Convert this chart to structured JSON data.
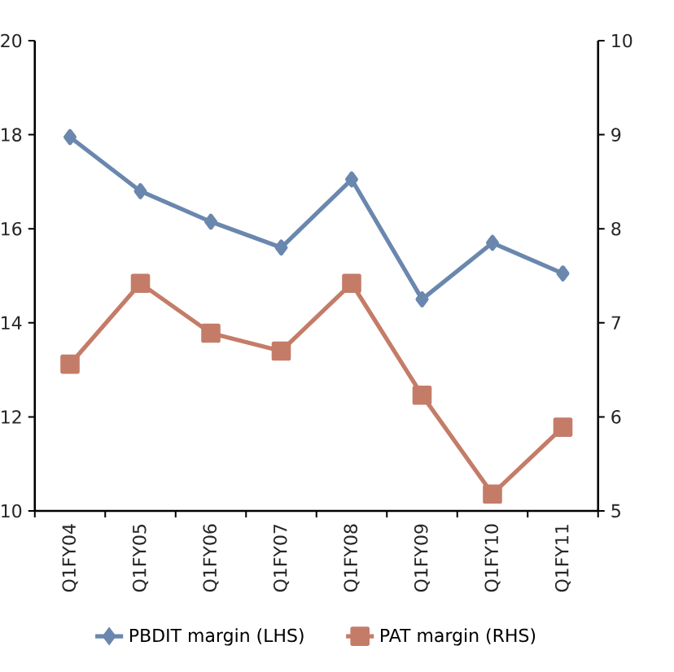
{
  "chart_data": {
    "type": "line",
    "categories": [
      "Q1FY04",
      "Q1FY05",
      "Q1FY06",
      "Q1FY07",
      "Q1FY08",
      "Q1FY09",
      "Q1FY10",
      "Q1FY11"
    ],
    "series": [
      {
        "name": "PBDIT margin (LHS)",
        "color": "#6a87ae",
        "marker": "diamond",
        "values": [
          17.95,
          16.8,
          16.15,
          15.6,
          17.05,
          14.5,
          15.7,
          15.05
        ]
      },
      {
        "name": "PAT margin (RHS)",
        "color": "#c47c68",
        "marker": "square",
        "axis": "y2",
        "values": [
          6.56,
          7.42,
          6.89,
          6.7,
          7.42,
          6.23,
          5.18,
          5.89
        ]
      }
    ],
    "ylim": [
      10,
      20
    ],
    "yticks": [
      10,
      12,
      14,
      16,
      18,
      20
    ],
    "y2lim": [
      5,
      10
    ],
    "y2ticks": [
      5,
      6,
      7,
      8,
      9,
      10
    ],
    "legend": "bottom",
    "grid": false
  }
}
